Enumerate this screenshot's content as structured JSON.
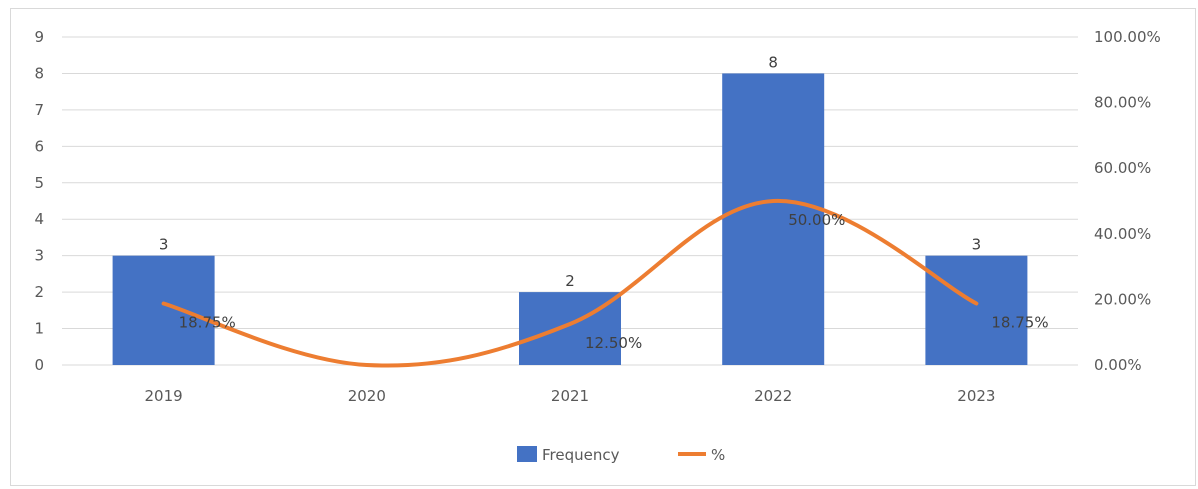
{
  "chart_data": {
    "type": "bar",
    "categories": [
      "2019",
      "2020",
      "2021",
      "2022",
      "2023"
    ],
    "series": [
      {
        "name": "Frequency",
        "type": "bar",
        "axis": "left",
        "color": "#4472c4",
        "values": [
          3,
          0,
          2,
          8,
          3
        ],
        "labels": [
          "3",
          "",
          "2",
          "8",
          "3"
        ]
      },
      {
        "name": "%",
        "type": "line",
        "axis": "right",
        "color": "#ed7d31",
        "values": [
          0.1875,
          0.0,
          0.125,
          0.5,
          0.1875
        ],
        "labels": [
          "18.75%",
          "",
          "12.50%",
          "50.00%",
          "18.75%"
        ]
      }
    ],
    "left_axis": {
      "ylim": [
        0,
        9
      ],
      "ticks": [
        "0",
        "1",
        "2",
        "3",
        "4",
        "5",
        "6",
        "7",
        "8",
        "9"
      ]
    },
    "right_axis": {
      "ylim": [
        0,
        1
      ],
      "ticks": [
        "0.00%",
        "20.00%",
        "40.00%",
        "60.00%",
        "80.00%",
        "100.00%"
      ]
    },
    "grid": true,
    "legend": "bottom"
  },
  "legend": {
    "bar_label": "Frequency",
    "line_label": "%"
  }
}
